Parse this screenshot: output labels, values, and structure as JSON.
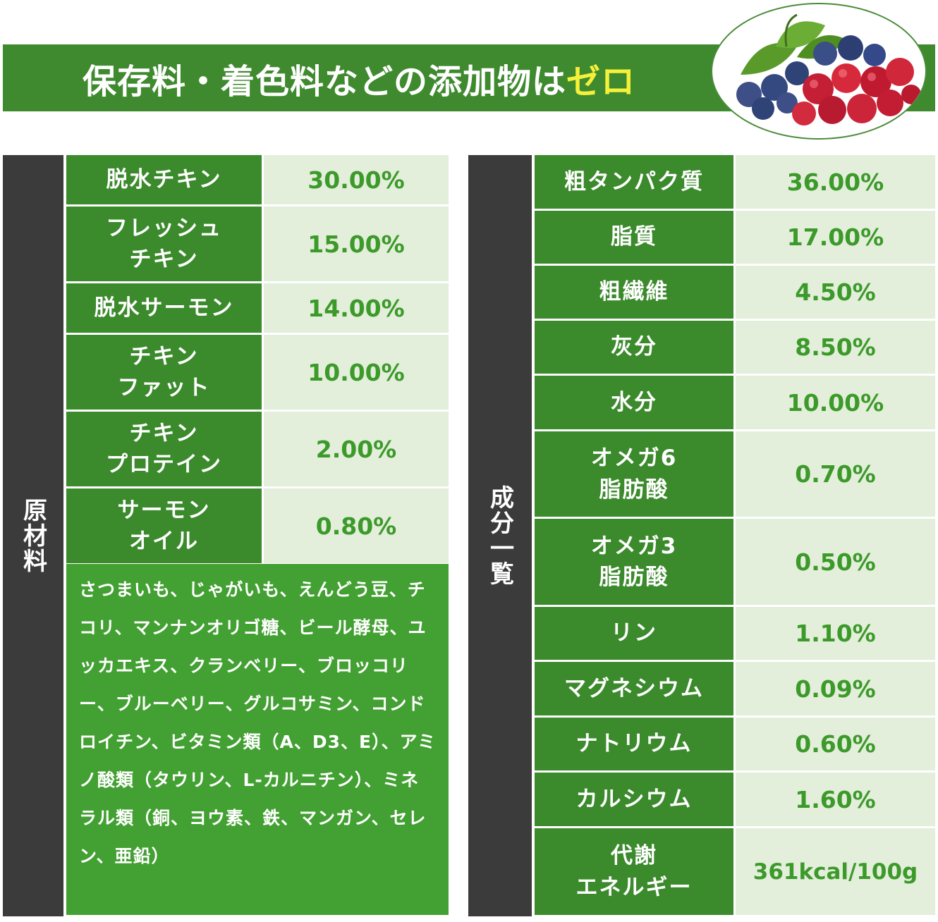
{
  "banner": {
    "title_main": "保存料・着色料などの添加物は",
    "title_accent": "ゼロ",
    "accent_color": "#f5f03a",
    "brand_green": "#3f8a2f"
  },
  "ingredients": {
    "header": "原材料",
    "rows": [
      {
        "name": "脱水チキン",
        "value": "30.00%"
      },
      {
        "name": "フレッシュ\nチキン",
        "value": "15.00%"
      },
      {
        "name": "脱水サーモン",
        "value": "14.00%"
      },
      {
        "name": "チキン\nファット",
        "value": "10.00%"
      },
      {
        "name": "チキン\nプロテイン",
        "value": "2.00%"
      },
      {
        "name": "サーモン\nオイル",
        "value": "0.80%"
      }
    ],
    "others": "さつまいも、じゃがいも、えんどう豆、チコリ、マンナンオリゴ糖、ビール酵母、ユッカエキス、クランベリー、ブロッコリー、ブルーベリー、グルコサミン、コンドロイチン、ビタミン類（A、D3、E）、アミノ酸類（タウリン、L-カルニチン）、ミネラル類（銅、ヨウ素、鉄、マンガン、セレン、亜鉛）"
  },
  "nutrients": {
    "header": "成分一覧",
    "rows": [
      {
        "name": "粗タンパク質",
        "value": "36.00%"
      },
      {
        "name": "脂質",
        "value": "17.00%"
      },
      {
        "name": "粗繊維",
        "value": "4.50%"
      },
      {
        "name": "灰分",
        "value": "8.50%"
      },
      {
        "name": "水分",
        "value": "10.00%"
      },
      {
        "name": "オメガ6\n脂肪酸",
        "value": "0.70%"
      },
      {
        "name": "オメガ3\n脂肪酸",
        "value": "0.50%"
      },
      {
        "name": "リン",
        "value": "1.10%"
      },
      {
        "name": "マグネシウム",
        "value": "0.09%"
      },
      {
        "name": "ナトリウム",
        "value": "0.60%"
      },
      {
        "name": "カルシウム",
        "value": "1.60%"
      },
      {
        "name": "代謝\nエネルギー",
        "value": "361kcal/100g"
      }
    ]
  }
}
